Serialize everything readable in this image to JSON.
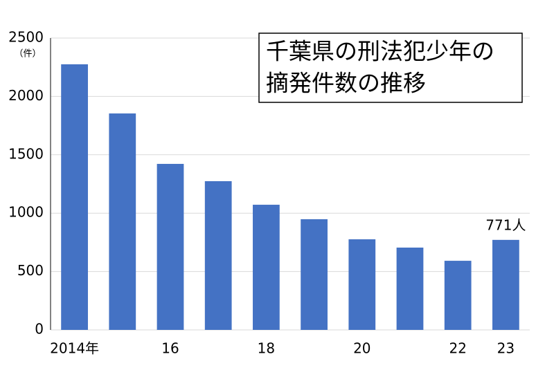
{
  "chart_data": {
    "type": "bar",
    "title": [
      "千葉県の刑法犯少年の",
      "摘発件数の推移"
    ],
    "y_unit": "（件）",
    "categories": [
      "2014年",
      null,
      "16",
      null,
      "18",
      null,
      "20",
      null,
      "22",
      "23"
    ],
    "values": [
      2275,
      1854,
      1422,
      1274,
      1072,
      948,
      776,
      705,
      592,
      771
    ],
    "value_labels": [
      null,
      null,
      null,
      null,
      null,
      null,
      null,
      null,
      null,
      "771人"
    ],
    "color": "#4472c4",
    "ylim": [
      0,
      2500
    ],
    "yticks": [
      0,
      500,
      1000,
      1500,
      2000,
      2500
    ],
    "grid": true
  }
}
